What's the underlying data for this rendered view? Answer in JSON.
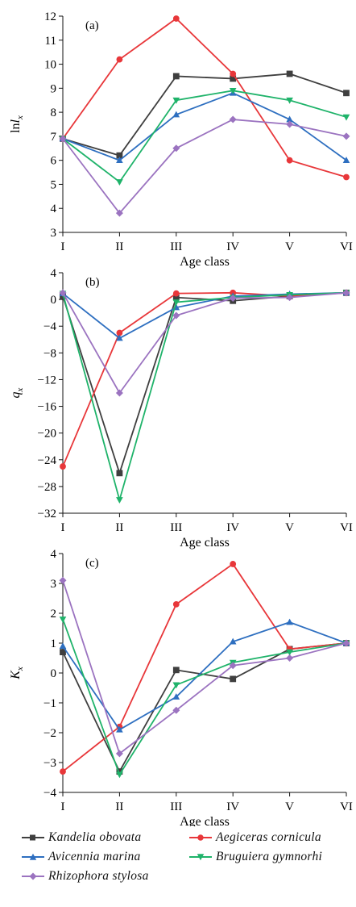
{
  "colors": {
    "Kandelia obovata": "#3f3f3f",
    "Aegiceras cornicula": "#e8373a",
    "Avicennia marina": "#2e6fc0",
    "Bruguiera gymnorhi": "#1fb36a",
    "Rhizophora stylosa": "#9b73c0"
  },
  "markers": {
    "Kandelia obovata": "square",
    "Aegiceras cornicula": "circle",
    "Avicennia marina": "triangle-up",
    "Bruguiera gymnorhi": "triangle-down",
    "Rhizophora stylosa": "diamond"
  },
  "legend": {
    "items": [
      "Kandelia obovata",
      "Aegiceras cornicula",
      "Avicennia marina",
      "Bruguiera gymnorhi",
      "Rhizophora stylosa"
    ]
  },
  "chart_data": [
    {
      "type": "line",
      "panel": "(a)",
      "xlabel": "Age class",
      "ylabel": "lnlx",
      "categories": [
        "I",
        "II",
        "III",
        "IV",
        "V",
        "VI"
      ],
      "ylim": [
        3,
        12
      ],
      "yticks": [
        3,
        4,
        5,
        6,
        7,
        8,
        9,
        10,
        11,
        12
      ],
      "series": [
        {
          "name": "Kandelia obovata",
          "values": [
            6.9,
            6.2,
            9.5,
            9.4,
            9.6,
            8.8
          ]
        },
        {
          "name": "Aegiceras cornicula",
          "values": [
            6.9,
            10.2,
            11.9,
            9.6,
            6.0,
            5.3
          ]
        },
        {
          "name": "Avicennia marina",
          "values": [
            6.9,
            6.0,
            7.9,
            8.8,
            7.7,
            6.0
          ]
        },
        {
          "name": "Bruguiera gymnorhi",
          "values": [
            6.9,
            5.1,
            8.5,
            8.9,
            8.5,
            7.8
          ]
        },
        {
          "name": "Rhizophora stylosa",
          "values": [
            6.9,
            3.8,
            6.5,
            7.7,
            7.5,
            7.0
          ]
        }
      ]
    },
    {
      "type": "line",
      "panel": "(b)",
      "xlabel": "Age class",
      "ylabel": "qx",
      "categories": [
        "I",
        "II",
        "III",
        "IV",
        "V",
        "VI"
      ],
      "ylim": [
        -32,
        4
      ],
      "yticks": [
        -32,
        -28,
        -24,
        -20,
        -16,
        -12,
        -8,
        -4,
        0,
        4
      ],
      "series": [
        {
          "name": "Kandelia obovata",
          "values": [
            0.5,
            -26.0,
            0.3,
            -0.2,
            0.5,
            1.0
          ]
        },
        {
          "name": "Aegiceras cornicula",
          "values": [
            -25.0,
            -5.0,
            0.9,
            1.0,
            0.5,
            1.0
          ]
        },
        {
          "name": "Avicennia marina",
          "values": [
            0.9,
            -5.8,
            -1.2,
            0.5,
            0.8,
            1.0
          ]
        },
        {
          "name": "Bruguiera gymnorhi",
          "values": [
            0.9,
            -30.0,
            -0.4,
            0.3,
            0.7,
            1.0
          ]
        },
        {
          "name": "Rhizophora stylosa",
          "values": [
            1.0,
            -14.0,
            -2.4,
            0.2,
            0.3,
            1.0
          ]
        }
      ]
    },
    {
      "type": "line",
      "panel": "(c)",
      "xlabel": "Age class",
      "ylabel": "Kx",
      "categories": [
        "I",
        "II",
        "III",
        "IV",
        "V",
        "VI"
      ],
      "ylim": [
        -4,
        4
      ],
      "yticks": [
        -4,
        -3,
        -2,
        -1,
        0,
        1,
        2,
        3,
        4
      ],
      "series": [
        {
          "name": "Kandelia obovata",
          "values": [
            0.7,
            -3.3,
            0.1,
            -0.2,
            0.8,
            1.0
          ]
        },
        {
          "name": "Aegiceras cornicula",
          "values": [
            -3.3,
            -1.8,
            2.3,
            3.65,
            0.8,
            1.0
          ]
        },
        {
          "name": "Avicennia marina",
          "values": [
            0.9,
            -1.9,
            -0.8,
            1.05,
            1.7,
            1.0
          ]
        },
        {
          "name": "Bruguiera gymnorhi",
          "values": [
            1.8,
            -3.4,
            -0.4,
            0.35,
            0.7,
            1.0
          ]
        },
        {
          "name": "Rhizophora stylosa",
          "values": [
            3.1,
            -2.7,
            -1.25,
            0.25,
            0.5,
            1.0
          ]
        }
      ]
    }
  ]
}
